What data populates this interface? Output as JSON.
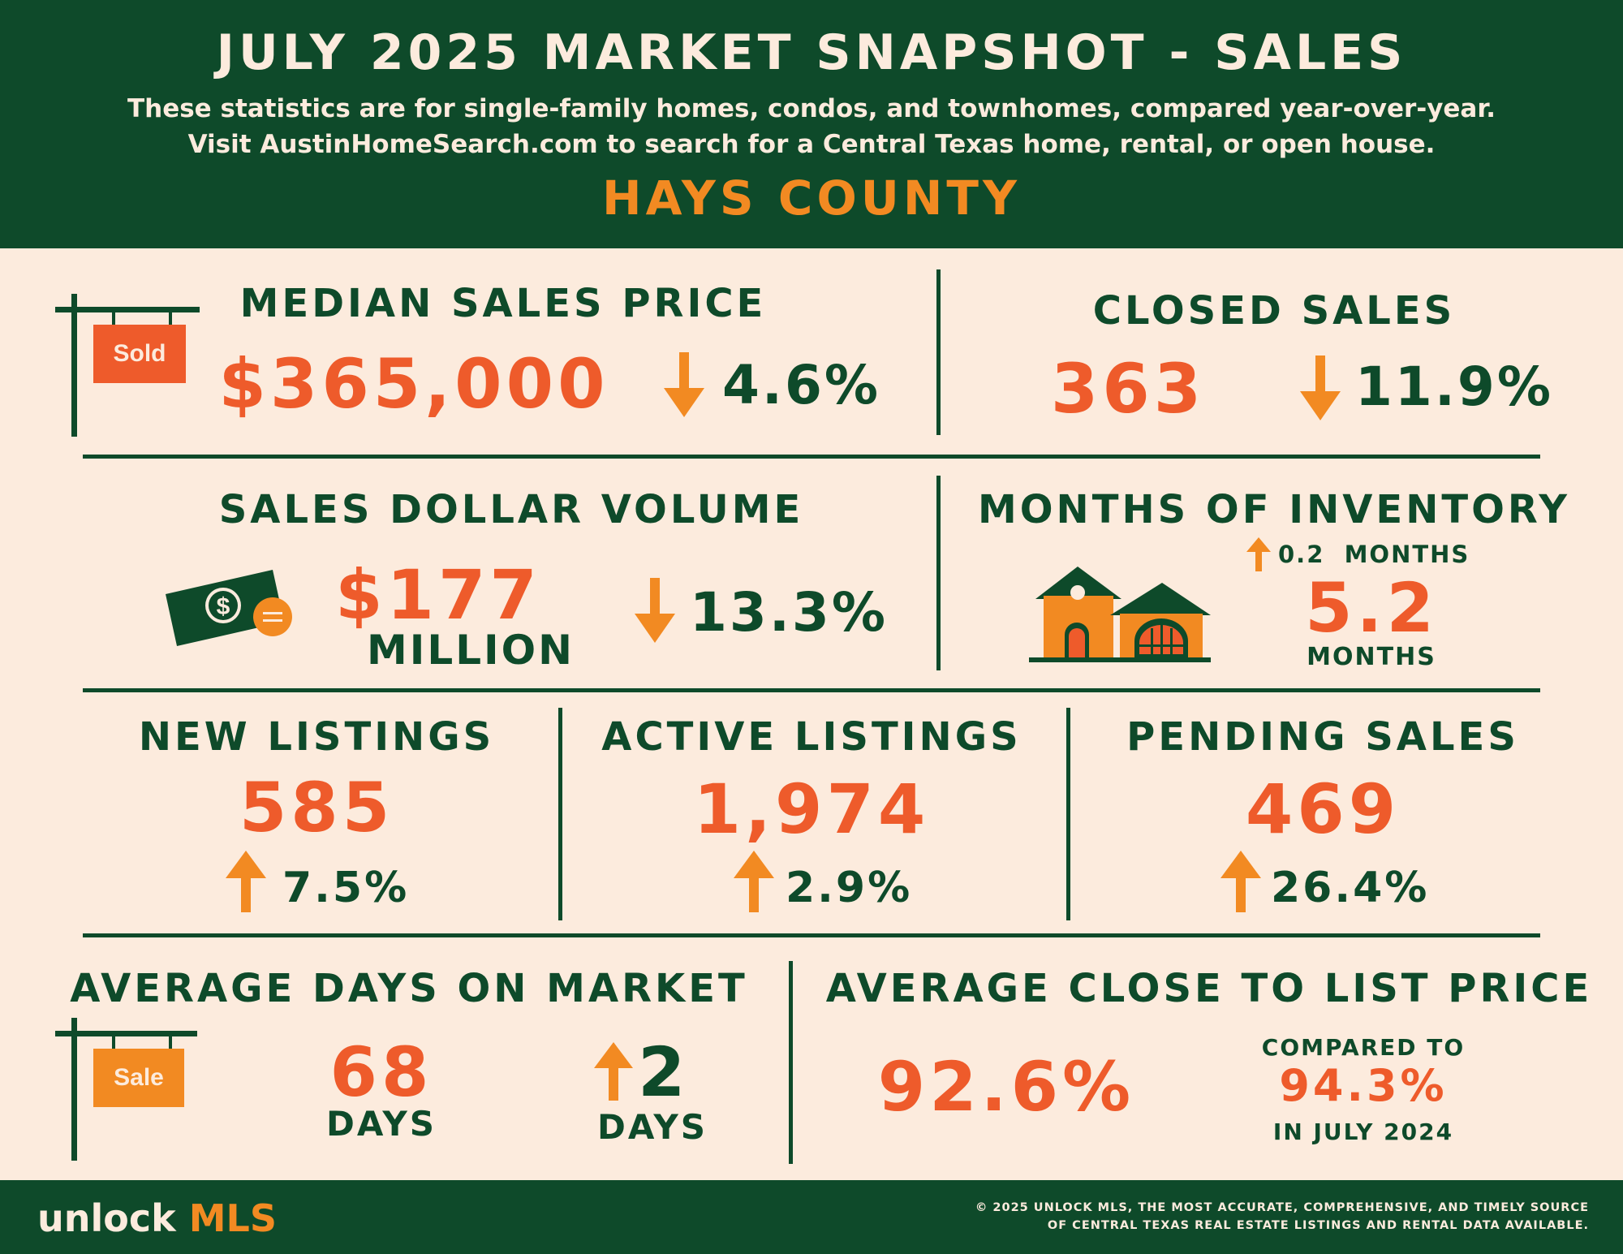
{
  "header": {
    "title": "JULY 2025 MARKET SNAPSHOT - SALES",
    "subtitle_line1": "These statistics are for single-family homes, condos, and townhomes, compared year-over-year.",
    "subtitle_line2": "Visit AustinHomeSearch.com to search for a Central Texas home, rental, or open house.",
    "county": "HAYS COUNTY"
  },
  "median_sales_price": {
    "label": "MEDIAN SALES PRICE",
    "sign_text": "Sold",
    "value": "$365,000",
    "change_direction": "down",
    "change": "4.6%"
  },
  "closed_sales": {
    "label": "CLOSED SALES",
    "value": "363",
    "change_direction": "down",
    "change": "11.9%"
  },
  "sales_dollar_volume": {
    "label": "SALES DOLLAR VOLUME",
    "value": "$177",
    "unit": "MILLION",
    "change_direction": "down",
    "change": "13.3%"
  },
  "months_of_inventory": {
    "label": "MONTHS OF INVENTORY",
    "change_direction": "up",
    "change": "0.2  MONTHS",
    "value": "5.2",
    "unit": "MONTHS"
  },
  "new_listings": {
    "label": "NEW LISTINGS",
    "value": "585",
    "change_direction": "up",
    "change": "7.5%"
  },
  "active_listings": {
    "label": "ACTIVE LISTINGS",
    "value": "1,974",
    "change_direction": "up",
    "change": "2.9%"
  },
  "pending_sales": {
    "label": "PENDING SALES",
    "value": "469",
    "change_direction": "up",
    "change": "26.4%"
  },
  "average_days_on_market": {
    "label": "AVERAGE DAYS ON MARKET",
    "sign_text": "Sale",
    "value": "68",
    "unit": "DAYS",
    "change_direction": "up",
    "change": "2",
    "change_unit": "DAYS"
  },
  "average_close_to_list": {
    "label": "AVERAGE CLOSE TO LIST PRICE",
    "value": "92.6%",
    "compared_label": "COMPARED TO",
    "compared_value": "94.3%",
    "compared_period": "IN JULY 2024"
  },
  "footer": {
    "brand_part1": "unlock",
    "brand_part2": "MLS",
    "copyright_line1": "© 2025 UNLOCK MLS, THE MOST ACCURATE, COMPREHENSIVE, AND TIMELY SOURCE",
    "copyright_line2": "OF CENTRAL TEXAS REAL ESTATE LISTINGS AND RENTAL DATA AVAILABLE."
  },
  "colors": {
    "dark_green": "#0e4a2a",
    "orange_red": "#ee5b2b",
    "amber": "#f28a22",
    "cream": "#fcebdd"
  },
  "icons": {
    "down": "arrow-down-icon",
    "up": "arrow-up-icon",
    "sold_sign": "sold-sign-icon",
    "money": "money-bill-icon",
    "house": "house-icon",
    "sale_sign": "sale-sign-icon"
  }
}
